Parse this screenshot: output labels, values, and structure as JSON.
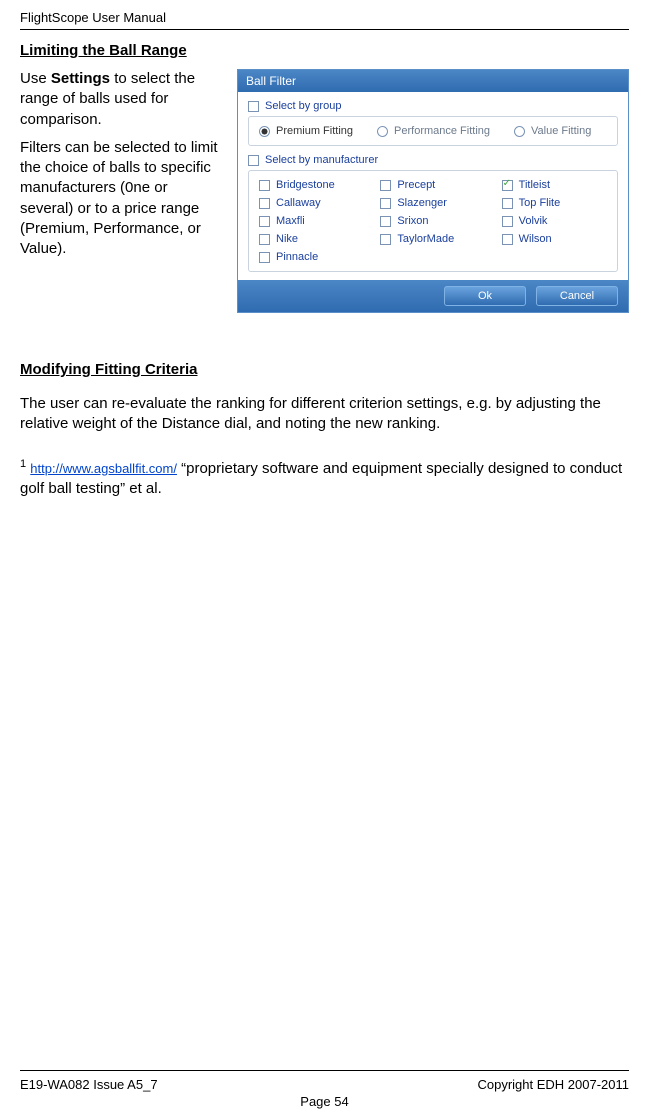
{
  "header": {
    "title": "FlightScope User Manual"
  },
  "section1": {
    "heading": "Limiting the Ball Range",
    "para1_pre": "Use ",
    "para1_bold": "Settings",
    "para1_post": " to select the range of balls used for comparison.",
    "para2": "Filters can be selected to limit the choice of balls to specific manufacturers (0ne or several) or to a price range (Premium, Performance, or Value)."
  },
  "dialog": {
    "title": "Ball Filter",
    "group_label": "Select by group",
    "group_options": [
      "Premium Fitting",
      "Performance Fitting",
      "Value Fitting"
    ],
    "group_selected_index": 0,
    "mfr_label": "Select by manufacturer",
    "manufacturers": [
      {
        "name": "Bridgestone",
        "checked": false
      },
      {
        "name": "Precept",
        "checked": false
      },
      {
        "name": "Titleist",
        "checked": true
      },
      {
        "name": "Callaway",
        "checked": false
      },
      {
        "name": "Slazenger",
        "checked": false
      },
      {
        "name": "Top Flite",
        "checked": false
      },
      {
        "name": "Maxfli",
        "checked": false
      },
      {
        "name": "Srixon",
        "checked": false
      },
      {
        "name": "Volvik",
        "checked": false
      },
      {
        "name": "Nike",
        "checked": false
      },
      {
        "name": "TaylorMade",
        "checked": false
      },
      {
        "name": "Wilson",
        "checked": false
      },
      {
        "name": "Pinnacle",
        "checked": false
      }
    ],
    "ok_label": "Ok",
    "cancel_label": "Cancel",
    "colors": {
      "title_grad_top": "#4b86c6",
      "title_grad_bot": "#2f6bb0",
      "border": "#5b8fc7",
      "link_text": "#1a3f9c"
    }
  },
  "section2": {
    "heading": "Modifying Fitting Criteria",
    "body": "The user can re-evaluate the ranking for different criterion settings, e.g. by adjusting the relative weight of the Distance dial, and noting the new ranking."
  },
  "footnote": {
    "marker": "1",
    "link_text": "http://www.agsballfit.com/",
    "tail": " “proprietary software and equipment specially designed to conduct golf ball testing” et al."
  },
  "footer": {
    "left": "E19-WA082 Issue A5_7",
    "right": "Copyright EDH 2007-2011",
    "page": "Page 54"
  }
}
